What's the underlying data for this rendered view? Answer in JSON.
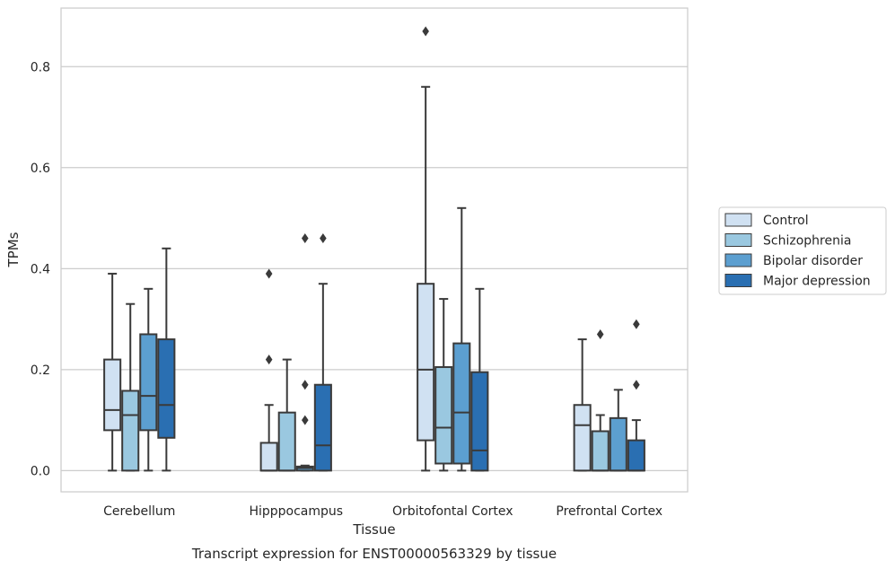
{
  "chart_data": {
    "type": "box",
    "title": "",
    "caption": "Transcript expression for ENST00000563329 by tissue",
    "xlabel": "Tissue",
    "ylabel": "TPMs",
    "ylim": [
      -0.042,
      0.916
    ],
    "yticks": [
      0.0,
      0.2,
      0.4,
      0.6,
      0.8
    ],
    "ytick_labels": [
      "0.0",
      "0.2",
      "0.4",
      "0.6",
      "0.8"
    ],
    "categories": [
      "Cerebellum",
      "Hipppocampus",
      "Orbitofontal Cortex",
      "Prefrontal Cortex"
    ],
    "grid": "horizontal",
    "legend_position": "right",
    "series": [
      {
        "name": "Control",
        "color": "#d0e1f2",
        "boxes": [
          {
            "whislo": 0.0,
            "q1": 0.08,
            "med": 0.12,
            "q3": 0.22,
            "whishi": 0.39,
            "fliers": []
          },
          {
            "whislo": 0.0,
            "q1": 0.0,
            "med": 0.0,
            "q3": 0.055,
            "whishi": 0.13,
            "fliers": [
              0.22,
              0.39
            ]
          },
          {
            "whislo": 0.0,
            "q1": 0.06,
            "med": 0.2,
            "q3": 0.37,
            "whishi": 0.76,
            "fliers": [
              0.87
            ]
          },
          {
            "whislo": 0.0,
            "q1": 0.0,
            "med": 0.09,
            "q3": 0.13,
            "whishi": 0.26,
            "fliers": []
          }
        ]
      },
      {
        "name": "Schizophrenia",
        "color": "#9ac8e0",
        "boxes": [
          {
            "whislo": 0.0,
            "q1": 0.0,
            "med": 0.11,
            "q3": 0.158,
            "whishi": 0.33,
            "fliers": []
          },
          {
            "whislo": 0.0,
            "q1": 0.0,
            "med": 0.0,
            "q3": 0.115,
            "whishi": 0.22,
            "fliers": []
          },
          {
            "whislo": 0.0,
            "q1": 0.014,
            "med": 0.085,
            "q3": 0.205,
            "whishi": 0.34,
            "fliers": []
          },
          {
            "whislo": 0.0,
            "q1": 0.0,
            "med": 0.0,
            "q3": 0.078,
            "whishi": 0.11,
            "fliers": [
              0.27
            ]
          }
        ]
      },
      {
        "name": "Bipolar disorder",
        "color": "#5c9fd0",
        "boxes": [
          {
            "whislo": 0.0,
            "q1": 0.08,
            "med": 0.148,
            "q3": 0.27,
            "whishi": 0.36,
            "fliers": []
          },
          {
            "whislo": 0.0,
            "q1": 0.0,
            "med": 0.005,
            "q3": 0.008,
            "whishi": 0.01,
            "fliers": [
              0.1,
              0.17,
              0.46
            ]
          },
          {
            "whislo": 0.0,
            "q1": 0.014,
            "med": 0.115,
            "q3": 0.252,
            "whishi": 0.52,
            "fliers": []
          },
          {
            "whislo": 0.0,
            "q1": 0.0,
            "med": 0.0,
            "q3": 0.104,
            "whishi": 0.16,
            "fliers": []
          }
        ]
      },
      {
        "name": "Major depression",
        "color": "#2a6fb2",
        "boxes": [
          {
            "whislo": 0.0,
            "q1": 0.065,
            "med": 0.13,
            "q3": 0.26,
            "whishi": 0.44,
            "fliers": []
          },
          {
            "whislo": 0.0,
            "q1": 0.0,
            "med": 0.05,
            "q3": 0.17,
            "whishi": 0.37,
            "fliers": [
              0.46
            ]
          },
          {
            "whislo": 0.0,
            "q1": 0.0,
            "med": 0.04,
            "q3": 0.195,
            "whishi": 0.36,
            "fliers": []
          },
          {
            "whislo": 0.0,
            "q1": 0.0,
            "med": 0.0,
            "q3": 0.06,
            "whishi": 0.1,
            "fliers": [
              0.17,
              0.29
            ]
          }
        ]
      }
    ]
  },
  "colors": {
    "grid": "#cccccc",
    "spine": "#cccccc",
    "line": "#3a3a3a",
    "text": "#262626"
  }
}
